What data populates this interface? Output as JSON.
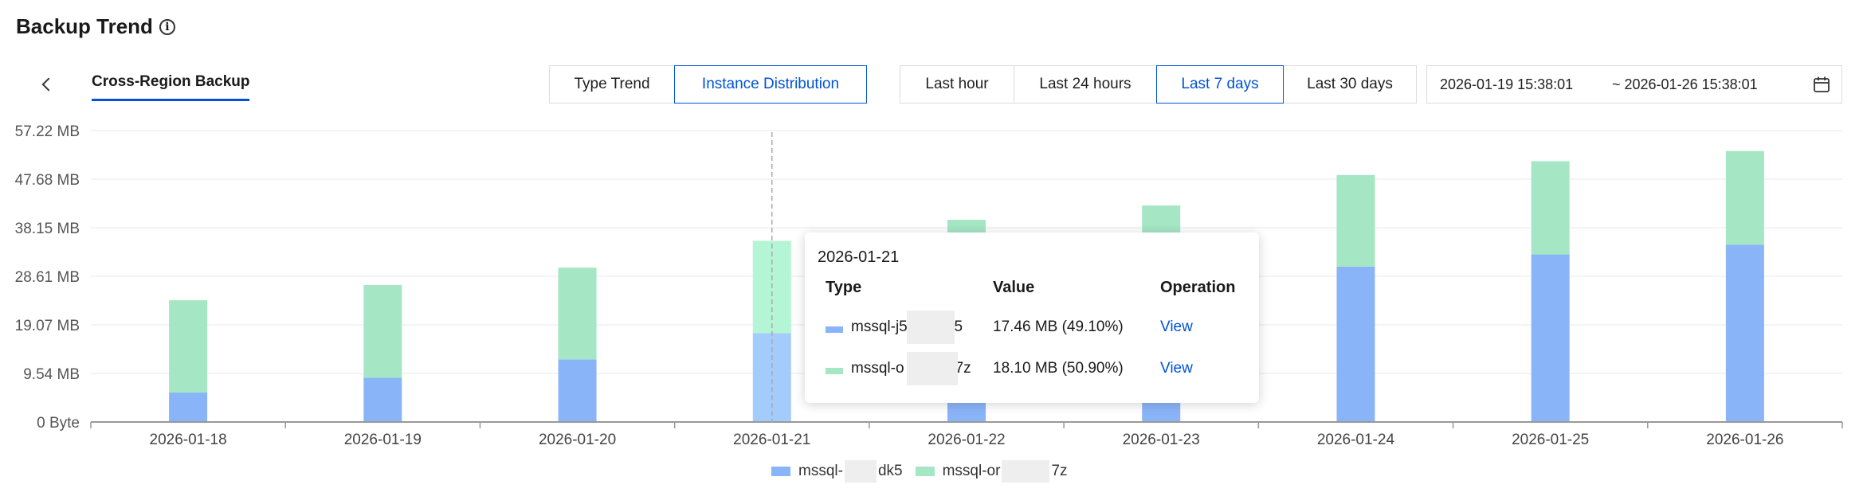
{
  "header": {
    "title": "Backup Trend",
    "info_icon": "info-icon"
  },
  "tabs": {
    "active_label": "Cross-Region Backup",
    "back_icon": "chevron-left-icon"
  },
  "view_toggle": {
    "options": [
      "Type Trend",
      "Instance Distribution"
    ],
    "selected": "Instance Distribution"
  },
  "time_range": {
    "options": [
      "Last hour",
      "Last 24 hours",
      "Last 7 days",
      "Last 30 days"
    ],
    "selected": "Last 7 days"
  },
  "date_range": {
    "start": "2026-01-19 15:38:01",
    "end": "~ 2026-01-26 15:38:01",
    "icon": "calendar-icon"
  },
  "colors": {
    "series1": "#8ab4f8",
    "series2": "#a5e6c4",
    "series1_hover": "#a3cbfb",
    "series2_hover": "#b3f5d4",
    "accent": "#0052d9",
    "grid": "#e6e9ef",
    "axis": "#999999"
  },
  "chart_data": {
    "type": "bar",
    "stacked": true,
    "categories": [
      "2026-01-18",
      "2026-01-19",
      "2026-01-20",
      "2026-01-21",
      "2026-01-22",
      "2026-01-23",
      "2026-01-24",
      "2026-01-25",
      "2026-01-26"
    ],
    "y_ticks": [
      "0 Byte",
      "9.54 MB",
      "19.07 MB",
      "28.61 MB",
      "38.15 MB",
      "47.68 MB",
      "57.22 MB"
    ],
    "ylim": [
      0,
      57.22
    ],
    "series": [
      {
        "name": "mssql-j5…dk5",
        "values": [
          5.8,
          8.7,
          12.3,
          17.46,
          22.0,
          25.0,
          30.5,
          32.9,
          34.8
        ]
      },
      {
        "name": "mssql-or…z",
        "values": [
          18.1,
          18.2,
          18.0,
          18.1,
          17.7,
          17.5,
          18.0,
          18.3,
          18.4
        ]
      }
    ],
    "hovered_index": 3,
    "grid": true,
    "legend_position": "bottom"
  },
  "tooltip": {
    "date": "2026-01-21",
    "headers": {
      "type": "Type",
      "value": "Value",
      "operation": "Operation"
    },
    "rows": [
      {
        "name": "mssql-j5",
        "name_tail": "k5",
        "value": "17.46 MB  (49.10%)",
        "op": "View"
      },
      {
        "name": "mssql-o",
        "name_tail": "37z",
        "value": "18.10 MB  (50.90%)",
        "op": "View"
      }
    ]
  },
  "legend": {
    "items": [
      {
        "name": "mssql-",
        "tail": "dk5"
      },
      {
        "name": "mssql-or",
        "tail": "7z"
      }
    ]
  }
}
